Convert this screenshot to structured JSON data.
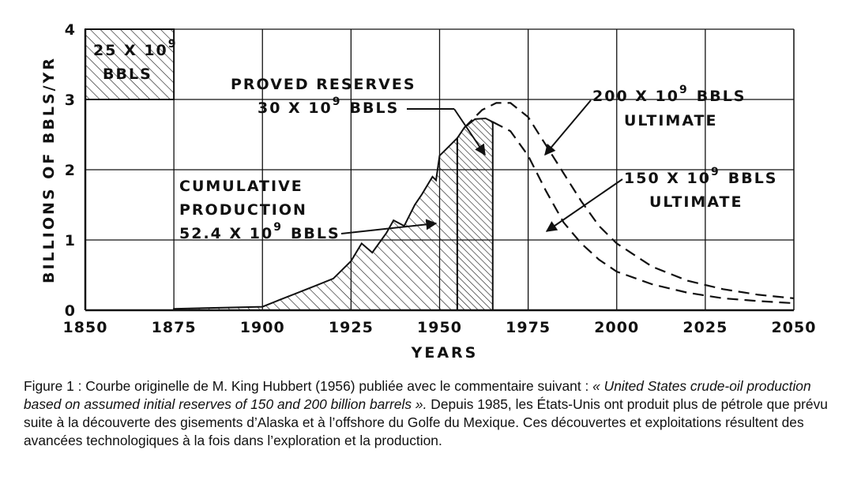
{
  "chart_data": {
    "type": "area",
    "xlabel": "YEARS",
    "ylabel": "BILLIONS OF BBLS/YR",
    "xlim": [
      1850,
      2050
    ],
    "ylim": [
      0,
      4
    ],
    "x_ticks": [
      "1850",
      "1875",
      "1900",
      "1925",
      "1950",
      "1975",
      "2000",
      "2025",
      "2050"
    ],
    "y_ticks": [
      "0",
      "1",
      "2",
      "3",
      "4"
    ],
    "grid": true,
    "series": [
      {
        "style": "hatched-area",
        "x": [
          1875,
          1900,
          1905,
          1910,
          1915,
          1920,
          1925,
          1928,
          1931,
          1935,
          1937,
          1940,
          1943,
          1945,
          1948,
          1949,
          1950,
          1952,
          1955
        ],
        "y": [
          0.02,
          0.05,
          0.15,
          0.25,
          0.35,
          0.45,
          0.7,
          0.95,
          0.82,
          1.1,
          1.28,
          1.2,
          1.5,
          1.65,
          1.9,
          1.85,
          2.2,
          2.3,
          2.45
        ]
      },
      {
        "style": "dense-hatched-area",
        "x": [
          1955,
          1957,
          1960,
          1963,
          1965
        ],
        "y": [
          2.45,
          2.6,
          2.72,
          2.73,
          2.68
        ]
      },
      {
        "style": "dashed",
        "x": [
          1965,
          1970,
          1975,
          1980,
          1985,
          1990,
          1995,
          2000,
          2010,
          2020,
          2030,
          2040,
          2050
        ],
        "y": [
          2.68,
          2.55,
          2.2,
          1.7,
          1.25,
          0.95,
          0.72,
          0.55,
          0.37,
          0.25,
          0.17,
          0.13,
          0.1
        ]
      },
      {
        "style": "dashed",
        "x": [
          1957,
          1962,
          1966,
          1970,
          1975,
          1980,
          1985,
          1990,
          1995,
          2000,
          2010,
          2020,
          2030,
          2040,
          2050
        ],
        "y": [
          2.6,
          2.85,
          2.95,
          2.95,
          2.75,
          2.35,
          1.95,
          1.55,
          1.2,
          0.95,
          0.62,
          0.42,
          0.3,
          0.22,
          0.17
        ]
      }
    ],
    "inset": {
      "label_line1": "25 X 10",
      "label_line1_sup": "9",
      "label_line2": "BBLS",
      "x": [
        1850,
        1875
      ],
      "y": [
        3,
        4
      ]
    },
    "annotations": {
      "proved_line1": "PROVED RESERVES",
      "proved_line2": "30 X 10",
      "proved_sup": "9",
      "proved_line2_tail": "BBLS",
      "cumulative_line1": "CUMULATIVE",
      "cumulative_line2": "PRODUCTION",
      "cumulative_line3": "52.4 X 10",
      "cumulative_sup": "9",
      "cumulative_line3_tail": "BBLS",
      "ultimate200_line1": "200 X 10",
      "ultimate200_sup": "9",
      "ultimate200_tail": "BBLS",
      "ultimate200_line2": "ULTIMATE",
      "ultimate150_line1": "150 X 10",
      "ultimate150_sup": "9",
      "ultimate150_tail": "BBLS",
      "ultimate150_line2": "ULTIMATE"
    }
  },
  "caption": {
    "part1": "Figure 1 : Courbe originelle de M. King Hubbert (1956) publiée avec le commentaire suivant : ",
    "part2_italic": "« United States crude-oil production based on assumed initial reserves of 150 and 200 billion barrels ».",
    "part3": " Depuis 1985, les États-Unis ont produit plus de pétrole que prévu suite à la découverte des gisements d’Alaska et à l’offshore du Golfe du Mexique. Ces découvertes et exploitations résultent des avancées technologiques à la fois dans l’exploration et la production."
  }
}
